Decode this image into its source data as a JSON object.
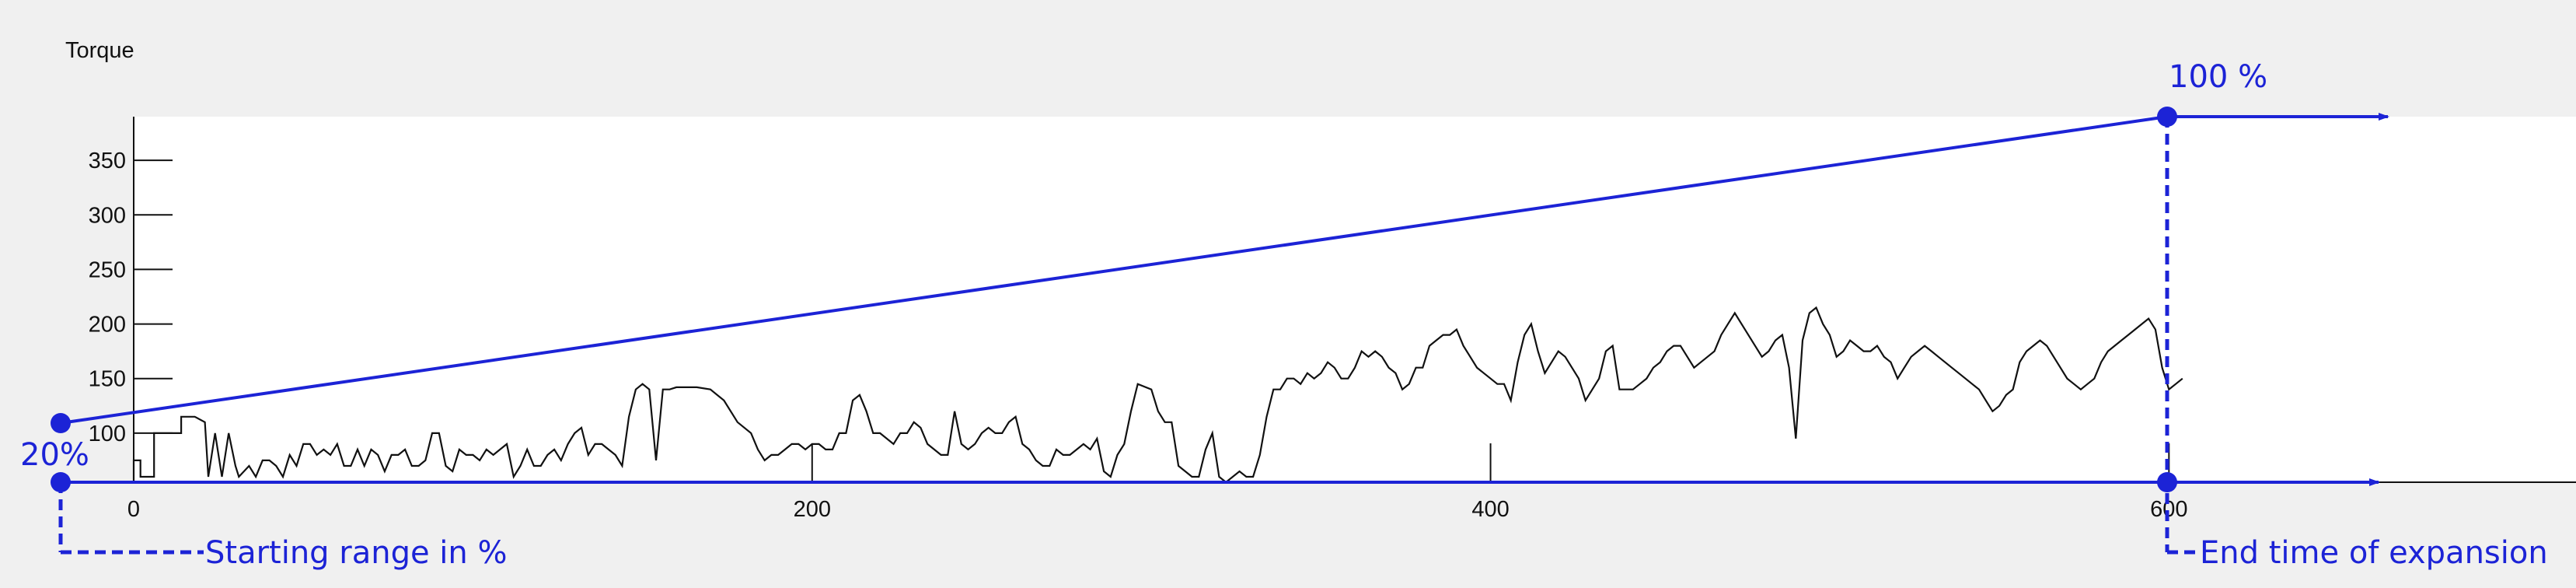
{
  "chart_data": {
    "type": "line",
    "title": "Torque",
    "xlabel": "",
    "ylabel": "",
    "xlim": [
      0,
      720
    ],
    "ylim": [
      55,
      390
    ],
    "x_ticks": [
      0,
      200,
      400,
      600
    ],
    "y_ticks": [
      100,
      150,
      200,
      250,
      300,
      350
    ],
    "grid": false,
    "series": [
      {
        "points": [
          [
            0,
            55
          ],
          [
            0,
            75
          ],
          [
            2,
            75
          ],
          [
            2,
            60
          ],
          [
            6,
            60
          ],
          [
            6,
            100
          ],
          [
            14,
            100
          ],
          [
            14,
            115
          ],
          [
            18,
            115
          ],
          [
            21,
            110
          ],
          [
            22,
            60
          ],
          [
            24,
            100
          ],
          [
            26,
            60
          ],
          [
            28,
            100
          ],
          [
            30,
            70
          ],
          [
            31,
            60
          ],
          [
            34,
            70
          ],
          [
            36,
            60
          ],
          [
            38,
            75
          ],
          [
            40,
            75
          ],
          [
            42,
            70
          ],
          [
            44,
            60
          ],
          [
            46,
            80
          ],
          [
            48,
            70
          ],
          [
            50,
            90
          ],
          [
            52,
            90
          ],
          [
            54,
            80
          ],
          [
            56,
            85
          ],
          [
            58,
            80
          ],
          [
            60,
            90
          ],
          [
            62,
            70
          ],
          [
            64,
            70
          ],
          [
            66,
            85
          ],
          [
            68,
            70
          ],
          [
            70,
            85
          ],
          [
            72,
            80
          ],
          [
            74,
            65
          ],
          [
            76,
            80
          ],
          [
            78,
            80
          ],
          [
            80,
            85
          ],
          [
            82,
            70
          ],
          [
            84,
            70
          ],
          [
            86,
            75
          ],
          [
            88,
            100
          ],
          [
            90,
            100
          ],
          [
            92,
            70
          ],
          [
            94,
            65
          ],
          [
            96,
            85
          ],
          [
            98,
            80
          ],
          [
            100,
            80
          ],
          [
            102,
            75
          ],
          [
            104,
            85
          ],
          [
            106,
            80
          ],
          [
            108,
            85
          ],
          [
            110,
            90
          ],
          [
            112,
            60
          ],
          [
            114,
            70
          ],
          [
            116,
            85
          ],
          [
            118,
            70
          ],
          [
            120,
            70
          ],
          [
            122,
            80
          ],
          [
            124,
            85
          ],
          [
            126,
            75
          ],
          [
            128,
            90
          ],
          [
            130,
            100
          ],
          [
            132,
            105
          ],
          [
            134,
            80
          ],
          [
            136,
            90
          ],
          [
            138,
            90
          ],
          [
            140,
            85
          ],
          [
            142,
            80
          ],
          [
            144,
            70
          ],
          [
            146,
            115
          ],
          [
            148,
            140
          ],
          [
            150,
            145
          ],
          [
            152,
            140
          ],
          [
            154,
            75
          ],
          [
            156,
            140
          ],
          [
            158,
            140
          ],
          [
            160,
            142
          ],
          [
            166,
            142
          ],
          [
            170,
            140
          ],
          [
            174,
            130
          ],
          [
            178,
            110
          ],
          [
            182,
            100
          ],
          [
            184,
            85
          ],
          [
            186,
            75
          ],
          [
            188,
            80
          ],
          [
            190,
            80
          ],
          [
            192,
            85
          ],
          [
            194,
            90
          ],
          [
            196,
            90
          ],
          [
            198,
            85
          ],
          [
            200,
            90
          ],
          [
            202,
            90
          ],
          [
            204,
            85
          ],
          [
            206,
            85
          ],
          [
            208,
            100
          ],
          [
            210,
            100
          ],
          [
            212,
            130
          ],
          [
            214,
            135
          ],
          [
            216,
            120
          ],
          [
            218,
            100
          ],
          [
            220,
            100
          ],
          [
            222,
            95
          ],
          [
            224,
            90
          ],
          [
            226,
            100
          ],
          [
            228,
            100
          ],
          [
            230,
            110
          ],
          [
            232,
            105
          ],
          [
            234,
            90
          ],
          [
            236,
            85
          ],
          [
            238,
            80
          ],
          [
            240,
            80
          ],
          [
            242,
            120
          ],
          [
            244,
            90
          ],
          [
            246,
            85
          ],
          [
            248,
            90
          ],
          [
            250,
            100
          ],
          [
            252,
            105
          ],
          [
            254,
            100
          ],
          [
            256,
            100
          ],
          [
            258,
            110
          ],
          [
            260,
            115
          ],
          [
            262,
            90
          ],
          [
            264,
            85
          ],
          [
            266,
            75
          ],
          [
            268,
            70
          ],
          [
            270,
            70
          ],
          [
            272,
            85
          ],
          [
            274,
            80
          ],
          [
            276,
            80
          ],
          [
            278,
            85
          ],
          [
            280,
            90
          ],
          [
            282,
            85
          ],
          [
            284,
            95
          ],
          [
            286,
            65
          ],
          [
            288,
            60
          ],
          [
            290,
            80
          ],
          [
            292,
            90
          ],
          [
            294,
            120
          ],
          [
            296,
            145
          ],
          [
            300,
            140
          ],
          [
            302,
            120
          ],
          [
            304,
            110
          ],
          [
            306,
            110
          ],
          [
            308,
            70
          ],
          [
            310,
            65
          ],
          [
            312,
            60
          ],
          [
            314,
            60
          ],
          [
            316,
            85
          ],
          [
            318,
            100
          ],
          [
            320,
            60
          ],
          [
            322,
            55
          ],
          [
            324,
            60
          ],
          [
            326,
            65
          ],
          [
            328,
            60
          ],
          [
            330,
            60
          ],
          [
            332,
            80
          ],
          [
            334,
            115
          ],
          [
            336,
            140
          ],
          [
            338,
            140
          ],
          [
            340,
            150
          ],
          [
            342,
            150
          ],
          [
            344,
            145
          ],
          [
            346,
            155
          ],
          [
            348,
            150
          ],
          [
            350,
            155
          ],
          [
            352,
            165
          ],
          [
            354,
            160
          ],
          [
            356,
            150
          ],
          [
            358,
            150
          ],
          [
            360,
            160
          ],
          [
            362,
            175
          ],
          [
            364,
            170
          ],
          [
            366,
            175
          ],
          [
            368,
            170
          ],
          [
            370,
            160
          ],
          [
            372,
            155
          ],
          [
            374,
            140
          ],
          [
            376,
            145
          ],
          [
            378,
            160
          ],
          [
            380,
            160
          ],
          [
            382,
            180
          ],
          [
            384,
            185
          ],
          [
            386,
            190
          ],
          [
            388,
            190
          ],
          [
            390,
            195
          ],
          [
            392,
            180
          ],
          [
            394,
            170
          ],
          [
            396,
            160
          ],
          [
            398,
            155
          ],
          [
            400,
            150
          ],
          [
            402,
            145
          ],
          [
            404,
            145
          ],
          [
            406,
            130
          ],
          [
            408,
            165
          ],
          [
            410,
            190
          ],
          [
            412,
            200
          ],
          [
            414,
            175
          ],
          [
            416,
            155
          ],
          [
            418,
            165
          ],
          [
            420,
            175
          ],
          [
            422,
            170
          ],
          [
            424,
            160
          ],
          [
            426,
            150
          ],
          [
            428,
            130
          ],
          [
            430,
            140
          ],
          [
            432,
            150
          ],
          [
            434,
            175
          ],
          [
            436,
            180
          ],
          [
            438,
            140
          ],
          [
            440,
            140
          ],
          [
            442,
            140
          ],
          [
            444,
            145
          ],
          [
            446,
            150
          ],
          [
            448,
            160
          ],
          [
            450,
            165
          ],
          [
            452,
            175
          ],
          [
            454,
            180
          ],
          [
            456,
            180
          ],
          [
            458,
            170
          ],
          [
            460,
            160
          ],
          [
            462,
            165
          ],
          [
            464,
            170
          ],
          [
            466,
            175
          ],
          [
            468,
            190
          ],
          [
            470,
            200
          ],
          [
            472,
            210
          ],
          [
            474,
            200
          ],
          [
            476,
            190
          ],
          [
            478,
            180
          ],
          [
            480,
            170
          ],
          [
            482,
            175
          ],
          [
            484,
            185
          ],
          [
            486,
            190
          ],
          [
            488,
            160
          ],
          [
            490,
            95
          ],
          [
            492,
            185
          ],
          [
            494,
            210
          ],
          [
            496,
            215
          ],
          [
            498,
            200
          ],
          [
            500,
            190
          ],
          [
            502,
            170
          ],
          [
            504,
            175
          ],
          [
            506,
            185
          ],
          [
            508,
            180
          ],
          [
            510,
            175
          ],
          [
            512,
            175
          ],
          [
            514,
            180
          ],
          [
            516,
            170
          ],
          [
            518,
            165
          ],
          [
            520,
            150
          ],
          [
            522,
            160
          ],
          [
            524,
            170
          ],
          [
            526,
            175
          ],
          [
            528,
            180
          ],
          [
            530,
            175
          ],
          [
            532,
            170
          ],
          [
            534,
            165
          ],
          [
            536,
            160
          ],
          [
            538,
            155
          ],
          [
            540,
            150
          ],
          [
            542,
            145
          ],
          [
            544,
            140
          ],
          [
            546,
            130
          ],
          [
            548,
            120
          ],
          [
            550,
            125
          ],
          [
            552,
            135
          ],
          [
            554,
            140
          ],
          [
            556,
            165
          ],
          [
            558,
            175
          ],
          [
            560,
            180
          ],
          [
            562,
            185
          ],
          [
            564,
            180
          ],
          [
            566,
            170
          ],
          [
            568,
            160
          ],
          [
            570,
            150
          ],
          [
            572,
            145
          ],
          [
            574,
            140
          ],
          [
            576,
            145
          ],
          [
            578,
            150
          ],
          [
            580,
            165
          ],
          [
            582,
            175
          ],
          [
            584,
            180
          ],
          [
            586,
            185
          ],
          [
            588,
            190
          ],
          [
            590,
            195
          ],
          [
            592,
            200
          ],
          [
            594,
            205
          ],
          [
            596,
            195
          ],
          [
            598,
            160
          ],
          [
            600,
            140
          ],
          [
            602,
            145
          ],
          [
            604,
            150
          ]
        ]
      }
    ]
  },
  "annotations": {
    "top_percent": "100 %",
    "bottom_percent": "20%",
    "start_label": "Starting range in %",
    "end_label": "End time of expansion"
  },
  "colors": {
    "annotation": "#1c23d6",
    "series": "#111111",
    "plot_bg": "#ffffff",
    "page_bg": "#f0f0f0"
  }
}
